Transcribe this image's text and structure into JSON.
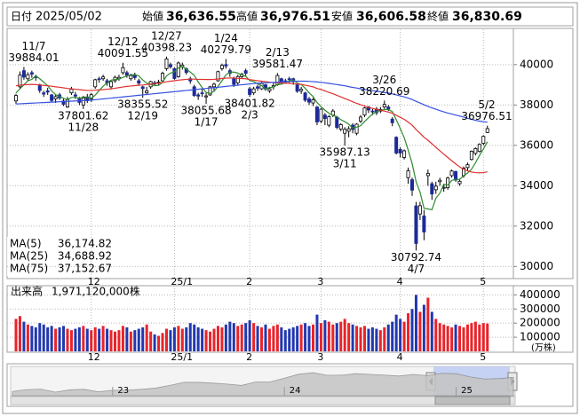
{
  "chart_data": {
    "type": "candlestick",
    "header": {
      "date_label": "日付",
      "date": "2025/05/02",
      "items": [
        {
          "name": "始値",
          "value": 36636.55,
          "label": "36,636.55",
          "color": "#000000"
        },
        {
          "name": "高値",
          "value": 36976.51,
          "label": "36,976.51",
          "color": "#e0201c"
        },
        {
          "name": "安値",
          "value": 36606.58,
          "label": "36,606.58",
          "color": "#1a8a1a"
        },
        {
          "name": "終値",
          "value": 36830.69,
          "label": "36,830.69",
          "color": "#000000"
        }
      ]
    },
    "categories": [
      null,
      null,
      null,
      null,
      null,
      null,
      null,
      null,
      null,
      null,
      null,
      null,
      null,
      null,
      null,
      null,
      null,
      null,
      null,
      "12",
      null,
      null,
      null,
      null,
      null,
      null,
      null,
      null,
      null,
      null,
      null,
      null,
      null,
      null,
      null,
      null,
      null,
      null,
      null,
      null,
      "25/1",
      null,
      null,
      null,
      null,
      null,
      null,
      null,
      null,
      null,
      null,
      null,
      null,
      null,
      null,
      null,
      null,
      null,
      null,
      "2",
      null,
      null,
      null,
      null,
      null,
      null,
      null,
      null,
      null,
      null,
      null,
      null,
      null,
      null,
      null,
      null,
      null,
      "3",
      null,
      null,
      null,
      null,
      null,
      null,
      null,
      null,
      null,
      null,
      null,
      null,
      null,
      null,
      null,
      null,
      null,
      null,
      null,
      "4",
      null,
      null,
      null,
      null,
      null,
      null,
      null,
      null,
      null,
      null,
      null,
      null,
      null,
      null,
      null,
      null,
      null,
      null,
      null,
      null,
      "5",
      null
    ],
    "open": [
      38200,
      38900,
      39700,
      39300,
      39600,
      39400,
      39000,
      38600,
      38700,
      38500,
      38300,
      38500,
      38200,
      37900,
      38600,
      38500,
      38300,
      38000,
      38400,
      38300,
      38900,
      39300,
      39300,
      39200,
      38900,
      39200,
      39300,
      39600,
      39600,
      39300,
      39500,
      39200,
      38900,
      38600,
      38900,
      39100,
      39100,
      39200,
      39800,
      40000,
      39800,
      39400,
      39900,
      39800,
      39300,
      38900,
      38500,
      38600,
      38400,
      38500,
      38900,
      39200,
      39800,
      40000,
      39700,
      39300,
      39100,
      39400,
      39700,
      38800,
      38600,
      38900,
      38800,
      39000,
      38700,
      38900,
      39000,
      39300,
      39200,
      39300,
      39300,
      39000,
      38700,
      38600,
      38300,
      38100,
      37900,
      37200,
      37500,
      37000,
      37500,
      37400,
      36800,
      36600,
      36700,
      37000,
      36600,
      37200,
      37500,
      37900,
      37700,
      37800,
      37700,
      37900,
      37900,
      37300,
      36400,
      35800,
      35400,
      34400,
      34300,
      33000,
      32600,
      32500,
      34500,
      34100,
      33800,
      34200,
      33900,
      33900,
      34500,
      34700,
      34100,
      34500,
      34900,
      35300,
      35600,
      35700,
      36100,
      36636.55
    ],
    "high": [
      38550,
      39660,
      39884.01,
      39620,
      39700,
      39500,
      39050,
      38700,
      38850,
      38550,
      38500,
      38600,
      38300,
      38400,
      38900,
      38650,
      38400,
      38450,
      38550,
      38600,
      39300,
      39400,
      39500,
      39300,
      39200,
      39450,
      39500,
      40091.55,
      39700,
      39550,
      39600,
      39300,
      38950,
      38900,
      39200,
      39200,
      39250,
      39650,
      40398.23,
      40100,
      39850,
      40150,
      40100,
      39850,
      39400,
      39000,
      38600,
      38800,
      38600,
      38950,
      39100,
      39700,
      40050,
      40279.79,
      39800,
      39400,
      39500,
      39600,
      39800,
      38900,
      38900,
      39000,
      39150,
      39050,
      38900,
      39100,
      39581.47,
      39350,
      39300,
      39400,
      39350,
      39050,
      38900,
      38650,
      38400,
      38350,
      37950,
      37850,
      37600,
      37500,
      37800,
      37450,
      37100,
      36900,
      36950,
      37100,
      37100,
      37500,
      37900,
      37950,
      37800,
      37900,
      37900,
      38220.69,
      38000,
      37400,
      36450,
      35900,
      35800,
      34900,
      34400,
      33200,
      33200,
      32800,
      34800,
      34200,
      34200,
      34400,
      34100,
      34450,
      34800,
      34750,
      34350,
      34950,
      35150,
      35750,
      35900,
      36100,
      36500,
      36976.51
    ],
    "low": [
      38050,
      38800,
      39250,
      39200,
      39350,
      39200,
      38600,
      38400,
      38500,
      38150,
      38100,
      38250,
      37950,
      37850,
      38500,
      38300,
      38000,
      37801.62,
      38100,
      38150,
      38800,
      39100,
      39200,
      38950,
      38800,
      39100,
      39200,
      39500,
      39350,
      39200,
      39250,
      38950,
      38355.52,
      38500,
      38800,
      38950,
      39000,
      39150,
      39700,
      39800,
      39250,
      39350,
      39750,
      39500,
      39050,
      38400,
      38250,
      38400,
      38055.68,
      38450,
      38700,
      39150,
      39700,
      39800,
      39400,
      38900,
      39000,
      39300,
      39450,
      38401.82,
      38500,
      38700,
      38750,
      38700,
      38600,
      38750,
      38950,
      39050,
      39050,
      39100,
      39000,
      38600,
      38550,
      38150,
      38000,
      37950,
      37000,
      37100,
      37000,
      36900,
      37400,
      36800,
      36700,
      35987.13,
      36400,
      36600,
      36500,
      37100,
      37400,
      37600,
      37500,
      37500,
      37600,
      37800,
      37700,
      36950,
      35550,
      35400,
      35300,
      34100,
      33500,
      30792.74,
      32300,
      31300,
      34000,
      33300,
      33600,
      34000,
      33700,
      33800,
      34400,
      34200,
      34000,
      34400,
      34750,
      35250,
      35500,
      35650,
      36000,
      36606.58
    ],
    "close": [
      38470,
      39480,
      39380,
      39500,
      39530,
      39380,
      38720,
      38540,
      38640,
      38220,
      38410,
      38350,
      38030,
      38280,
      38780,
      38440,
      38130,
      38350,
      38210,
      38510,
      39250,
      39280,
      39390,
      39090,
      39160,
      39370,
      39370,
      39850,
      39470,
      39460,
      39360,
      39080,
      38810,
      38700,
      39160,
      39040,
      39130,
      39570,
      40280,
      39890,
      39310,
      40080,
      39980,
      39610,
      39190,
      38470,
      38440,
      38570,
      38450,
      38900,
      39030,
      39650,
      39960,
      39930,
      39570,
      39020,
      39410,
      39510,
      39570,
      38520,
      38800,
      38830,
      39070,
      38790,
      38800,
      38960,
      39460,
      39150,
      39170,
      39270,
      39160,
      38680,
      38780,
      38240,
      38140,
      38260,
      37160,
      37790,
      37330,
      37420,
      37700,
      36890,
      37030,
      36790,
      36820,
      36790,
      37050,
      37400,
      37850,
      37750,
      37680,
      37610,
      37780,
      38030,
      37800,
      37120,
      35620,
      35620,
      35730,
      34740,
      33780,
      31140,
      33010,
      31710,
      34610,
      33590,
      33980,
      34270,
      33920,
      34380,
      34730,
      34280,
      34220,
      34870,
      35040,
      35710,
      35840,
      36050,
      36450,
      36830.69
    ],
    "up_color": "#ffffff",
    "down_color": "#1c2a98",
    "ylim": [
      29400,
      41750
    ],
    "yticks": [
      30000,
      32000,
      34000,
      36000,
      38000,
      40000
    ],
    "grid": true,
    "series": [
      {
        "name": "MA(5)",
        "color": "#2e8b2e",
        "latest": {
          "value": 36174.82,
          "label": "36,174.82"
        },
        "values": [
          38600,
          38800,
          39000,
          39200,
          39270,
          39450,
          39300,
          39130,
          38960,
          38700,
          38510,
          38430,
          38330,
          38260,
          38370,
          38380,
          38330,
          38400,
          38380,
          38330,
          38490,
          38720,
          38930,
          39100,
          39230,
          39260,
          39280,
          39370,
          39440,
          39500,
          39500,
          39440,
          39240,
          39080,
          39020,
          38960,
          38970,
          39120,
          39440,
          39580,
          39640,
          39830,
          39910,
          39770,
          39630,
          39470,
          39140,
          38860,
          38620,
          38570,
          38680,
          38920,
          39200,
          39490,
          39630,
          39630,
          39580,
          39490,
          39420,
          39210,
          39160,
          39050,
          38960,
          38800,
          38860,
          38890,
          39020,
          39030,
          39110,
          39200,
          39240,
          39090,
          39010,
          38830,
          38600,
          38420,
          38120,
          37920,
          37740,
          37590,
          37480,
          37430,
          37270,
          37170,
          37050,
          36860,
          36900,
          36970,
          37180,
          37370,
          37550,
          37660,
          37730,
          37770,
          37780,
          37670,
          37270,
          36840,
          36380,
          35770,
          35100,
          34200,
          33680,
          32880,
          32850,
          32810,
          33380,
          33630,
          34070,
          34030,
          34260,
          34320,
          34310,
          34500,
          34630,
          34820,
          35140,
          35500,
          35820,
          36174.82
        ]
      },
      {
        "name": "MA(25)",
        "color": "#e03030",
        "latest": {
          "value": 34688.92,
          "label": "34,688.92"
        },
        "values": [
          38950,
          38980,
          39000,
          39010,
          39020,
          39010,
          38990,
          38970,
          38950,
          38930,
          38900,
          38880,
          38850,
          38820,
          38800,
          38780,
          38760,
          38740,
          38720,
          38720,
          38730,
          38750,
          38760,
          38780,
          38800,
          38830,
          38860,
          38890,
          38920,
          38940,
          38960,
          38980,
          38990,
          39010,
          39040,
          39060,
          39080,
          39110,
          39150,
          39180,
          39200,
          39230,
          39250,
          39270,
          39280,
          39280,
          39270,
          39270,
          39260,
          39260,
          39270,
          39290,
          39310,
          39330,
          39340,
          39330,
          39320,
          39310,
          39300,
          39260,
          39230,
          39200,
          39180,
          39160,
          39130,
          39110,
          39100,
          39090,
          39080,
          39070,
          39060,
          39040,
          39020,
          38980,
          38940,
          38900,
          38820,
          38770,
          38700,
          38620,
          38560,
          38480,
          38400,
          38320,
          38240,
          38160,
          38080,
          38010,
          37950,
          37880,
          37830,
          37780,
          37740,
          37700,
          37650,
          37590,
          37490,
          37390,
          37290,
          37150,
          37000,
          36780,
          36600,
          36400,
          36250,
          36080,
          35900,
          35730,
          35560,
          35400,
          35240,
          35080,
          34930,
          34820,
          34730,
          34680,
          34650,
          34640,
          34650,
          34688.92
        ]
      },
      {
        "name": "MA(75)",
        "color": "#3550e0",
        "latest": {
          "value": 37152.67,
          "label": "37,152.67"
        },
        "values": [
          38050,
          38060,
          38070,
          38080,
          38090,
          38100,
          38110,
          38120,
          38130,
          38140,
          38150,
          38160,
          38170,
          38180,
          38190,
          38200,
          38210,
          38220,
          38230,
          38240,
          38260,
          38280,
          38300,
          38320,
          38340,
          38360,
          38380,
          38400,
          38420,
          38440,
          38460,
          38480,
          38500,
          38520,
          38540,
          38560,
          38580,
          38600,
          38620,
          38640,
          38660,
          38680,
          38700,
          38720,
          38740,
          38760,
          38780,
          38800,
          38820,
          38840,
          38860,
          38880,
          38900,
          38920,
          38940,
          38960,
          38980,
          39000,
          39020,
          39040,
          39060,
          39080,
          39090,
          39100,
          39110,
          39120,
          39130,
          39140,
          39150,
          39160,
          39170,
          39180,
          39180,
          39180,
          39170,
          39160,
          39140,
          39120,
          39100,
          39070,
          39040,
          39010,
          38980,
          38950,
          38910,
          38870,
          38840,
          38800,
          38770,
          38740,
          38710,
          38680,
          38650,
          38620,
          38590,
          38550,
          38500,
          38450,
          38400,
          38340,
          38270,
          38180,
          38100,
          38010,
          37930,
          37860,
          37790,
          37720,
          37660,
          37600,
          37550,
          37500,
          37450,
          37400,
          37340,
          37290,
          37240,
          37200,
          37170,
          37152.67
        ]
      }
    ],
    "annotations": [
      {
        "date": "11/7",
        "value": 39884.01
      },
      {
        "date": "11/28",
        "value": 37801.62
      },
      {
        "date": "12/12",
        "value": 40091.55
      },
      {
        "date": "12/19",
        "value": 38355.52
      },
      {
        "date": "12/27",
        "value": 40398.23
      },
      {
        "date": "1/17",
        "value": 38055.68
      },
      {
        "date": "1/24",
        "value": 40279.79
      },
      {
        "date": "2/3",
        "value": 38401.82
      },
      {
        "date": "2/13",
        "value": 39581.47
      },
      {
        "date": "3/11",
        "value": 35987.13
      },
      {
        "date": "3/26",
        "value": 38220.69
      },
      {
        "date": "4/7",
        "value": 30792.74
      },
      {
        "date": "5/2",
        "value": 36976.51
      }
    ],
    "volume": {
      "title": "出来高",
      "latest_label": "1,971,120,000株",
      "unit": "(万株)",
      "up_color": "#e8242a",
      "down_color": "#2238b0",
      "ylim": [
        0,
        440000
      ],
      "yticks": [
        100000,
        200000,
        300000,
        400000
      ],
      "values": [
        230000,
        250000,
        210000,
        190000,
        180000,
        170000,
        200000,
        190000,
        170000,
        180000,
        160000,
        170000,
        180000,
        160000,
        150000,
        160000,
        170000,
        180000,
        160000,
        150000,
        170000,
        160000,
        180000,
        160000,
        150000,
        140000,
        150000,
        180000,
        170000,
        140000,
        150000,
        160000,
        170000,
        190000,
        140000,
        120000,
        110000,
        130000,
        160000,
        150000,
        170000,
        180000,
        160000,
        170000,
        200000,
        190000,
        170000,
        160000,
        150000,
        140000,
        160000,
        180000,
        170000,
        190000,
        210000,
        200000,
        180000,
        190000,
        200000,
        220000,
        200000,
        180000,
        170000,
        190000,
        160000,
        180000,
        190000,
        170000,
        150000,
        160000,
        170000,
        180000,
        190000,
        200000,
        180000,
        190000,
        260000,
        200000,
        220000,
        210000,
        190000,
        200000,
        210000,
        230000,
        200000,
        190000,
        180000,
        170000,
        180000,
        160000,
        170000,
        160000,
        150000,
        170000,
        190000,
        210000,
        260000,
        230000,
        210000,
        270000,
        300000,
        400000,
        280000,
        330000,
        380000,
        280000,
        230000,
        200000,
        190000,
        180000,
        170000,
        190000,
        180000,
        170000,
        190000,
        200000,
        210000,
        190000,
        200000,
        197112
      ]
    },
    "navigator": {
      "categories": [
        null,
        null,
        null,
        null,
        null,
        null,
        null,
        "23",
        null,
        null,
        null,
        null,
        null,
        null,
        null,
        null,
        null,
        null,
        null,
        "24",
        null,
        null,
        null,
        null,
        null,
        null,
        null,
        null,
        null,
        null,
        null,
        "25",
        null,
        null,
        null,
        null
      ],
      "values": [
        26400,
        27800,
        28100,
        25900,
        27600,
        28000,
        26100,
        27300,
        27400,
        28000,
        28900,
        30900,
        33200,
        33200,
        32600,
        31900,
        30900,
        33500,
        33500,
        36300,
        39200,
        40400,
        38400,
        38500,
        39600,
        39100,
        38600,
        37900,
        39100,
        38200,
        39900,
        39600,
        37200,
        35600,
        36000,
        36800
      ]
    }
  }
}
